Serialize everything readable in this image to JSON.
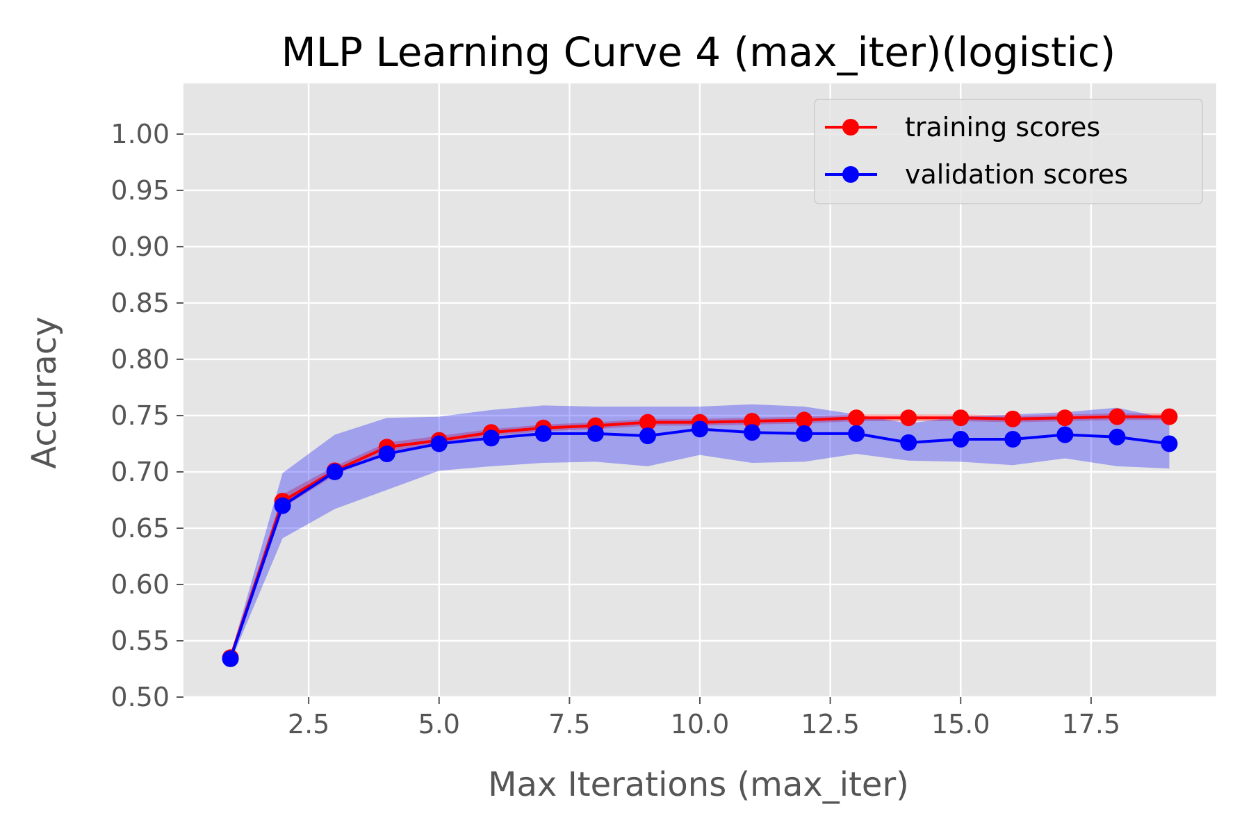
{
  "chart_data": {
    "type": "line",
    "title": "MLP Learning Curve 4 (max_iter)(logistic)",
    "xlabel": "Max Iterations (max_iter)",
    "ylabel": "Accuracy",
    "xlim": [
      0.1,
      19.9
    ],
    "ylim": [
      0.5,
      1.045
    ],
    "xticks": [
      2.5,
      5.0,
      7.5,
      10.0,
      12.5,
      15.0,
      17.5
    ],
    "xtick_labels": [
      "2.5",
      "5.0",
      "7.5",
      "10.0",
      "12.5",
      "15.0",
      "17.5"
    ],
    "yticks": [
      0.5,
      0.55,
      0.6,
      0.65,
      0.7,
      0.75,
      0.8,
      0.85,
      0.9,
      0.95,
      1.0
    ],
    "ytick_labels": [
      "0.50",
      "0.55",
      "0.60",
      "0.65",
      "0.70",
      "0.75",
      "0.80",
      "0.85",
      "0.90",
      "0.95",
      "1.00"
    ],
    "grid": true,
    "background_color": "#e5e5e5",
    "legend_position": "top-right",
    "x": [
      1,
      2,
      3,
      4,
      5,
      6,
      7,
      8,
      9,
      10,
      11,
      12,
      13,
      14,
      15,
      16,
      17,
      18,
      19
    ],
    "series": [
      {
        "name": "training scores",
        "color": "#ff0000",
        "values": [
          0.535,
          0.674,
          0.701,
          0.722,
          0.728,
          0.735,
          0.739,
          0.741,
          0.744,
          0.744,
          0.745,
          0.746,
          0.748,
          0.748,
          0.748,
          0.747,
          0.748,
          0.749,
          0.749
        ],
        "band_lower": [
          0.533,
          0.668,
          0.697,
          0.718,
          0.724,
          0.732,
          0.736,
          0.738,
          0.741,
          0.741,
          0.742,
          0.743,
          0.745,
          0.745,
          0.745,
          0.744,
          0.745,
          0.746,
          0.746
        ],
        "band_upper": [
          0.537,
          0.68,
          0.705,
          0.726,
          0.732,
          0.738,
          0.742,
          0.744,
          0.747,
          0.747,
          0.748,
          0.749,
          0.751,
          0.751,
          0.751,
          0.75,
          0.751,
          0.752,
          0.752
        ]
      },
      {
        "name": "validation scores",
        "color": "#0000ff",
        "values": [
          0.534,
          0.67,
          0.7,
          0.716,
          0.725,
          0.73,
          0.734,
          0.734,
          0.732,
          0.738,
          0.735,
          0.734,
          0.734,
          0.726,
          0.729,
          0.729,
          0.733,
          0.731,
          0.725
        ],
        "band_lower": [
          0.531,
          0.641,
          0.667,
          0.684,
          0.701,
          0.705,
          0.708,
          0.709,
          0.705,
          0.715,
          0.708,
          0.709,
          0.716,
          0.71,
          0.709,
          0.706,
          0.712,
          0.705,
          0.703
        ],
        "band_upper": [
          0.537,
          0.699,
          0.733,
          0.748,
          0.749,
          0.755,
          0.759,
          0.758,
          0.758,
          0.758,
          0.76,
          0.758,
          0.751,
          0.743,
          0.749,
          0.751,
          0.753,
          0.757,
          0.747
        ]
      }
    ]
  }
}
